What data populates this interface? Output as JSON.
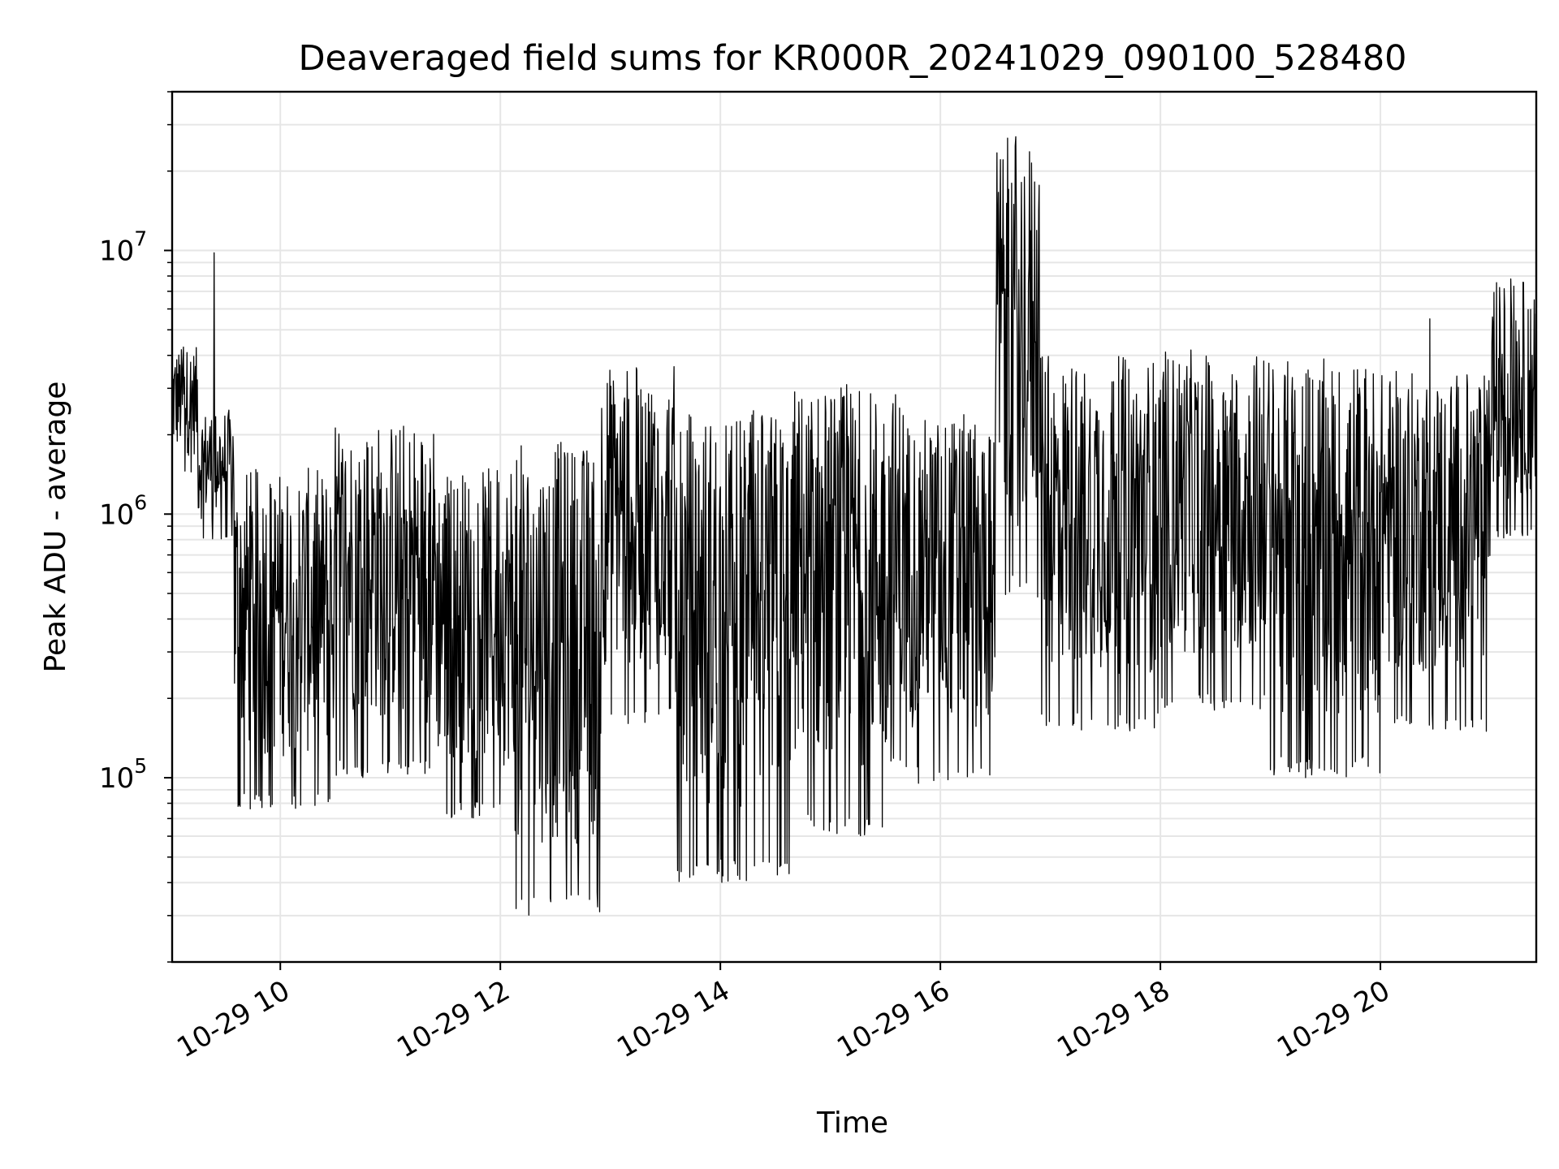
{
  "chart_data": {
    "type": "line",
    "title": "Deaveraged field sums for KR000R_20241029_090100_528480",
    "xlabel": "Time",
    "ylabel": "Peak ADU - average",
    "yscale": "log",
    "grid": true,
    "grid_minor_y": true,
    "legend": "none",
    "x_range": [
      "10-29 09:01",
      "10-29 21:25"
    ],
    "ylim": [
      20000,
      40000000
    ],
    "x_ticks": [
      "10-29 10:00",
      "10-29 12:00",
      "10-29 14:00",
      "10-29 16:00",
      "10-29 18:00",
      "10-29 20:00"
    ],
    "x_tick_labels": [
      "10-29 10",
      "10-29 12",
      "10-29 14",
      "10-29 16",
      "10-29 18",
      "10-29 20"
    ],
    "y_ticks": [
      {
        "value": 100000,
        "base": "10",
        "exp": "5"
      },
      {
        "value": 1000000,
        "base": "10",
        "exp": "6"
      },
      {
        "value": 10000000,
        "base": "10",
        "exp": "7"
      }
    ],
    "line_color": "#000000",
    "segments": [
      {
        "start": "10-29 09:01",
        "end": "10-29 09:15",
        "low": 1400000,
        "high": 4300000,
        "spike": 4300000
      },
      {
        "start": "10-29 09:15",
        "end": "10-29 09:35",
        "low": 800000,
        "high": 2500000,
        "spike": 9800000
      },
      {
        "start": "10-29 09:35",
        "end": "10-29 10:30",
        "low": 75000,
        "high": 1500000
      },
      {
        "start": "10-29 10:30",
        "end": "10-29 11:25",
        "low": 100000,
        "high": 2300000
      },
      {
        "start": "10-29 11:25",
        "end": "10-29 12:05",
        "low": 70000,
        "high": 1500000
      },
      {
        "start": "10-29 12:05",
        "end": "10-29 12:55",
        "low": 30000,
        "high": 1900000
      },
      {
        "start": "10-29 12:55",
        "end": "10-29 13:35",
        "low": 160000,
        "high": 3700000
      },
      {
        "start": "10-29 13:35",
        "end": "10-29 14:40",
        "low": 40000,
        "high": 2500000
      },
      {
        "start": "10-29 14:40",
        "end": "10-29 15:40",
        "low": 60000,
        "high": 3100000
      },
      {
        "start": "10-29 15:40",
        "end": "10-29 16:30",
        "low": 95000,
        "high": 2400000
      },
      {
        "start": "10-29 16:30",
        "end": "10-29 16:55",
        "low": 480000,
        "high": 27000000,
        "spike": 27000000
      },
      {
        "start": "10-29 16:55",
        "end": "10-29 18:00",
        "low": 150000,
        "high": 4000000
      },
      {
        "start": "10-29 18:00",
        "end": "10-29 19:00",
        "low": 180000,
        "high": 4200000
      },
      {
        "start": "10-29 19:00",
        "end": "10-29 20:00",
        "low": 100000,
        "high": 3900000
      },
      {
        "start": "10-29 20:00",
        "end": "10-29 21:00",
        "low": 150000,
        "high": 3500000,
        "spike": 5500000
      },
      {
        "start": "10-29 21:00",
        "end": "10-29 21:25",
        "low": 800000,
        "high": 7800000,
        "spike": 7800000
      }
    ]
  }
}
